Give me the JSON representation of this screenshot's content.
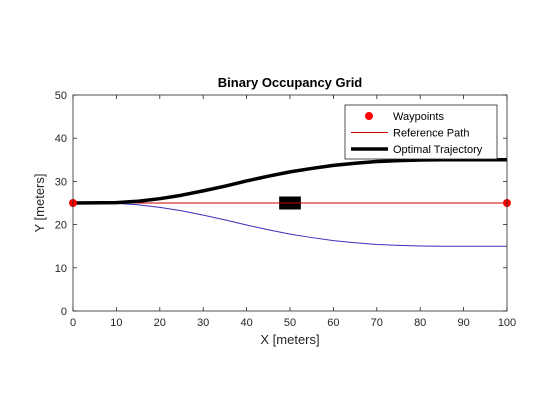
{
  "chart_data": {
    "type": "line",
    "title": "Binary Occupancy Grid",
    "xlabel": "X [meters]",
    "ylabel": "Y [meters]",
    "xlim": [
      0,
      100
    ],
    "ylim": [
      0,
      50
    ],
    "xticks": [
      0,
      10,
      20,
      30,
      40,
      50,
      60,
      70,
      80,
      90,
      100
    ],
    "yticks": [
      0,
      10,
      20,
      30,
      40,
      50
    ],
    "grid": false,
    "legend_position": "top-right",
    "occupied_cells": [
      {
        "x": [
          47.5,
          52.5
        ],
        "y": [
          23.5,
          26.5
        ],
        "color": "#000000"
      }
    ],
    "series": [
      {
        "name": "Waypoints",
        "kind": "markers",
        "color": "#ff0000",
        "x": [
          0,
          100
        ],
        "y": [
          25,
          25
        ]
      },
      {
        "name": "Reference Path",
        "kind": "line",
        "color": "#cc0000",
        "x": [
          0,
          100
        ],
        "y": [
          25,
          25
        ]
      },
      {
        "name": "Optimal Trajectory",
        "kind": "line",
        "color": "#000000",
        "x": [
          0,
          10,
          15,
          20,
          25,
          30,
          35,
          40,
          45,
          50,
          55,
          60,
          65,
          70,
          75,
          80,
          85,
          90,
          95,
          100
        ],
        "y": [
          25,
          25.1,
          25.4,
          26.0,
          26.8,
          27.8,
          28.9,
          30.1,
          31.2,
          32.2,
          33.0,
          33.7,
          34.2,
          34.6,
          34.8,
          34.95,
          35,
          35,
          35,
          35
        ]
      },
      {
        "kind": "line",
        "color": "#3b30b8",
        "x": [
          0,
          10,
          15,
          20,
          25,
          30,
          35,
          40,
          45,
          50,
          55,
          60,
          65,
          70,
          75,
          80,
          85,
          90,
          95,
          100
        ],
        "y": [
          25,
          24.9,
          24.6,
          24.0,
          23.2,
          22.2,
          21.1,
          19.9,
          18.8,
          17.8,
          17.0,
          16.3,
          15.8,
          15.4,
          15.2,
          15.05,
          15,
          15,
          15,
          15
        ]
      }
    ]
  }
}
